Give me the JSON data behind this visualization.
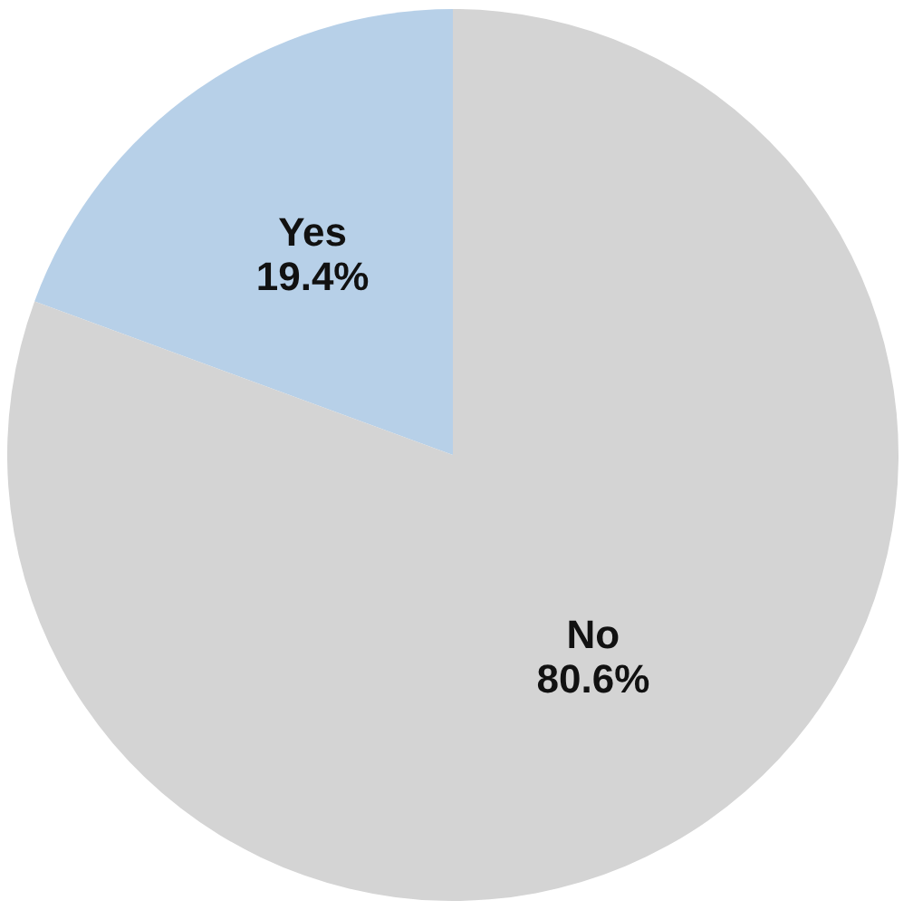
{
  "chart_data": {
    "type": "pie",
    "categories": [
      "Yes",
      "No"
    ],
    "values": [
      19.4,
      80.6
    ],
    "colors": [
      "#b7d0e8",
      "#d4d4d4"
    ],
    "value_labels": [
      "19.4%",
      "80.6%"
    ]
  }
}
